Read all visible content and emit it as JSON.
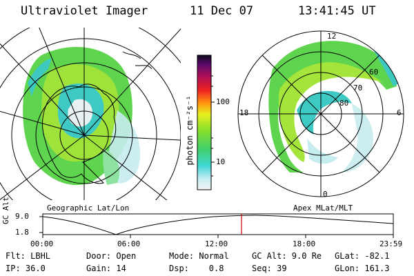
{
  "header": {
    "instrument": "Ultraviolet Imager",
    "date": "11 Dec 07",
    "time": "13:41:45 UT"
  },
  "left_map": {
    "caption": "Geographic Lat/Lon"
  },
  "right_map": {
    "caption": "Apex MLat/MLT",
    "mlt_labels": {
      "top": "12",
      "right": "6",
      "bottom": "0",
      "left": "18"
    },
    "mlat_labels": [
      "60",
      "70",
      "80"
    ]
  },
  "colorbar": {
    "unit_label": "photon cm⁻²s⁻¹",
    "ticks": [
      "100",
      "10"
    ],
    "scale": "log"
  },
  "altitude_plot": {
    "ylabel": "GC Alt",
    "y_ticks": [
      "9.0",
      "1.8"
    ],
    "x_ticks": [
      "00:00",
      "06:00",
      "12:00",
      "18:00",
      "23:59"
    ],
    "marker_color": "#cc0000"
  },
  "footer": {
    "flt": "Flt: LBHL",
    "door": "Door: Open",
    "mode": "Mode: Normal",
    "gc_alt": "GC Alt: 9.0 Re",
    "glat": "GLat: -82.1",
    "ip": "IP: 36.0",
    "gain": "Gain: 14",
    "dsp": "Dsp:    0.8",
    "seq": "Seq: 39",
    "glon": "GLon: 161.3"
  }
}
